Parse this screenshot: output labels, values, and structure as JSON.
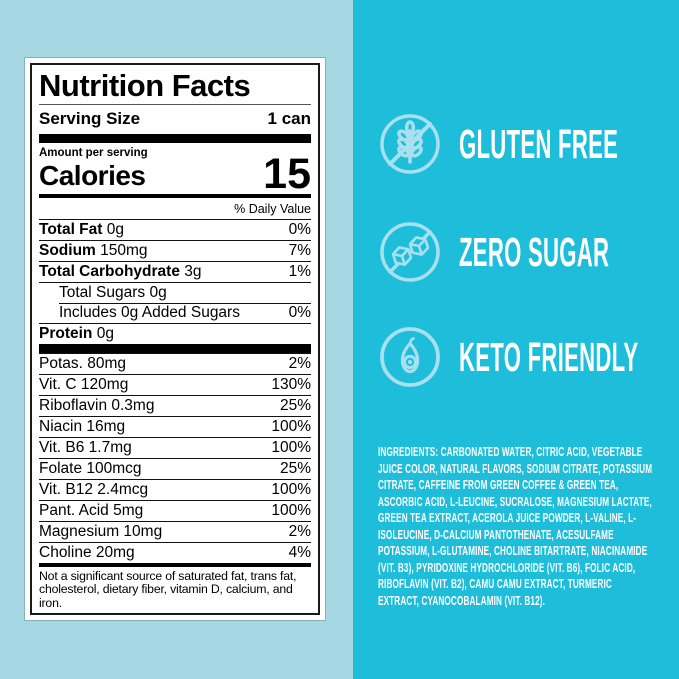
{
  "colors": {
    "left_background": "#A5D8E3",
    "right_background": "#1EBEDB",
    "icon_stroke": "#A9E0F0",
    "label_ink": "#000000",
    "badge_text": "#FFFFFF"
  },
  "nutrition_label": {
    "title": "Nutrition Facts",
    "serving_size_label": "Serving Size",
    "serving_size_value": "1 can",
    "amount_per_serving": "Amount per serving",
    "calories_label": "Calories",
    "calories_value": "15",
    "daily_value_header": "% Daily Value",
    "main_rows": [
      {
        "name": "Total Fat",
        "amount": "0g",
        "dv": "0%",
        "bold": true
      },
      {
        "name": "Sodium",
        "amount": "150mg",
        "dv": "7%",
        "bold": true
      },
      {
        "name": "Total Carbohydrate",
        "amount": "3g",
        "dv": "1%",
        "bold": true
      },
      {
        "name": "Total Sugars",
        "amount": "0g",
        "dv": "",
        "indent": true
      },
      {
        "name": "Includes 0g Added Sugars",
        "amount": "",
        "dv": "0%",
        "indent": true,
        "sep_indent": true
      },
      {
        "name": "Protein",
        "amount": "0g",
        "dv": "",
        "bold": true
      }
    ],
    "micronutrient_rows": [
      {
        "name": "Potas. 80mg",
        "dv": "2%"
      },
      {
        "name": "Vit. C 120mg",
        "dv": "130%"
      },
      {
        "name": "Riboflavin 0.3mg",
        "dv": "25%"
      },
      {
        "name": "Niacin 16mg",
        "dv": "100%"
      },
      {
        "name": "Vit. B6 1.7mg",
        "dv": "100%"
      },
      {
        "name": "Folate 100mcg",
        "dv": "25%"
      },
      {
        "name": "Vit. B12 2.4mcg",
        "dv": "100%"
      },
      {
        "name": "Pant. Acid 5mg",
        "dv": "100%"
      },
      {
        "name": "Magnesium 10mg",
        "dv": "2%"
      },
      {
        "name": "Choline 20mg",
        "dv": "4%"
      }
    ],
    "footnote": "Not a significant source of saturated fat, trans fat, cholesterol, dietary fiber, vitamin D, calcium, and iron."
  },
  "badges": [
    {
      "label": "GLUTEN FREE",
      "icon": "wheat-crossed-icon"
    },
    {
      "label": "ZERO SUGAR",
      "icon": "sugar-cubes-crossed-icon"
    },
    {
      "label": "KETO FRIENDLY",
      "icon": "avocado-icon"
    }
  ],
  "ingredients": {
    "heading": "INGREDIENTS:",
    "text": "CARBONATED WATER, CITRIC ACID, VEGETABLE JUICE COLOR, NATURAL FLAVORS, SODIUM CITRATE, POTASSIUM CITRATE, CAFFEINE FROM GREEN COFFEE & GREEN TEA, ASCORBIC ACID, L-LEUCINE, SUCRALOSE, MAGNESIUM LACTATE, GREEN TEA EXTRACT, ACEROLA JUICE POWDER, L-VALINE, L-ISOLEUCINE, D-CALCIUM PANTOTHENATE, ACESULFAME POTASSIUM, L-GLUTAMINE, CHOLINE BITARTRATE, NIACINAMIDE (VIT. B3), PYRIDOXINE HYDROCHLORIDE (VIT. B6), FOLIC ACID, RIBOFLAVIN (VIT. B2), CAMU CAMU EXTRACT, TURMERIC EXTRACT, CYANOCOBALAMIN (VIT. B12)."
  }
}
